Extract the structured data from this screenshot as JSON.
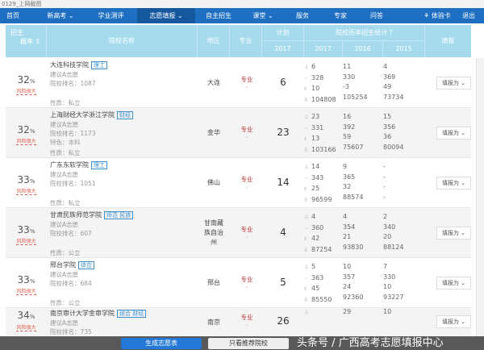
{
  "browser": {
    "tab_title": "0129_上网截图"
  },
  "nav": {
    "items": [
      "首页",
      "新高考 ⌄",
      "学业测评",
      "志愿填报 ⌄",
      "自主招生",
      "课堂 ⌄",
      "服务",
      "专家",
      "问答"
    ],
    "active": 3,
    "trial_card": "体验卡",
    "logout": "退出"
  },
  "header": {
    "ratio": "招生",
    "ratio2": "概率",
    "school": "院校名称",
    "region": "地区",
    "major": "专业",
    "plan": "计划",
    "plan_year": "2017",
    "history": "院校历年招生统计",
    "years": [
      "2017",
      "2016",
      "2015"
    ],
    "fill": "填报"
  },
  "rows": [
    {
      "pct": "32",
      "name": "大连科技学院",
      "tags": "理工",
      "advice": "建议A志愿",
      "rank": "院校排名：1087",
      "feature": "",
      "nature": "性质：私立",
      "region": "大连",
      "plan": "6",
      "stats": [
        [
          "6",
          "328",
          "10",
          "104808"
        ],
        [
          "11",
          "330",
          "-3",
          "105254"
        ],
        [
          "4",
          "369",
          "49",
          "73734"
        ]
      ]
    },
    {
      "pct": "32",
      "name": "上海财经大学浙江学院",
      "tags": "财经",
      "advice": "建议A志愿",
      "rank": "院校排名：1173",
      "feature": "特色：本科",
      "nature": "性质：私立",
      "region": "金华",
      "plan": "23",
      "stats": [
        [
          "23",
          "331",
          "13",
          "103166"
        ],
        [
          "16",
          "392",
          "59",
          "75607"
        ],
        [
          "15",
          "356",
          "36",
          "80094"
        ]
      ]
    },
    {
      "pct": "33",
      "name": "广东东软学院",
      "tags": "理工",
      "advice": "建议A志愿",
      "rank": "院校排名：1051",
      "feature": "",
      "nature": "性质：私立",
      "region": "佛山",
      "plan": "14",
      "stats": [
        [
          "14",
          "343",
          "25",
          "96599"
        ],
        [
          "9",
          "365",
          "32",
          "88574"
        ],
        [
          "-",
          "-",
          "-",
          "-"
        ]
      ]
    },
    {
      "pct": "33",
      "name": "甘肃民族师范学院",
      "tags": "师范 民族",
      "advice": "建议A志愿",
      "rank": "院校排名：607",
      "feature": "",
      "nature": "性质：公立",
      "region": "甘南藏族自治州",
      "plan": "4",
      "stats": [
        [
          "4",
          "360",
          "42",
          "87254"
        ],
        [
          "4",
          "354",
          "21",
          "93830"
        ],
        [
          "2",
          "340",
          "20",
          "88124"
        ]
      ]
    },
    {
      "pct": "33",
      "name": "邢台学院",
      "tags": "综合",
      "advice": "建议A志愿",
      "rank": "院校排名：684",
      "feature": "",
      "nature": "性质：公立",
      "region": "邢台",
      "plan": "5",
      "stats": [
        [
          "5",
          "363",
          "45",
          "85550"
        ],
        [
          "10",
          "357",
          "24",
          "92360"
        ],
        [
          "7",
          "330",
          "10",
          "93227"
        ]
      ]
    },
    {
      "pct": "34",
      "name": "南京审计大学金审学院",
      "tags": "综合 财经",
      "advice": "建议A志愿",
      "rank": "院校排名：735",
      "feature": "",
      "nature": "",
      "region": "南京",
      "plan": "26",
      "stats": [
        [
          "",
          "",
          "",
          ""
        ],
        [
          "29",
          "",
          "",
          ""
        ],
        [
          "10",
          "",
          "",
          ""
        ]
      ]
    }
  ],
  "risk_label": "风险很大",
  "major_label": "专业",
  "fill_label": "填报为 ⌄",
  "footer": {
    "generate": "生成志愿表",
    "only_recommended": "只看推荐院校"
  },
  "watermark": "头条号 / 广西高考志愿填报中心",
  "colors": {
    "nav": "#1e6fc2",
    "header": "#a6dbee",
    "primary_button": "#2478d8",
    "risk": "#e05a4a"
  }
}
